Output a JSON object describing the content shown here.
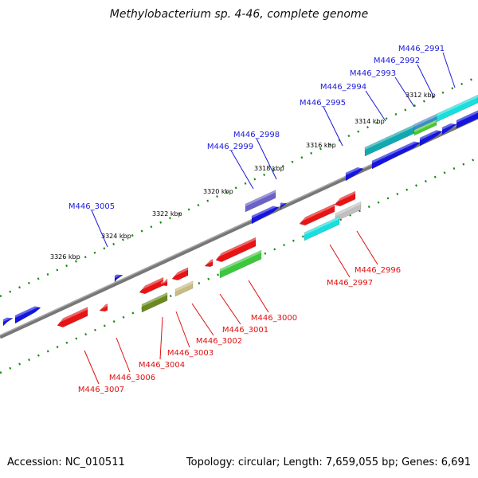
{
  "title": "Methylobacterium sp. 4-46, complete genome",
  "footer": {
    "accession": "Accession: NC_010511",
    "topology": "Topology: circular; Length: 7,659,055 bp; Genes: 6,691"
  },
  "scale": {
    "ticks": [
      {
        "label": "3312 kbp"
      },
      {
        "label": "3314 kbp"
      },
      {
        "label": "3316 kbp"
      },
      {
        "label": "3318 kbp"
      },
      {
        "label": "3320 kbp"
      },
      {
        "label": "3322 kbp"
      },
      {
        "label": "3324 kbp"
      },
      {
        "label": "3326 kbp"
      }
    ]
  },
  "genes": {
    "forward": [
      {
        "label": "M446_2991",
        "color": "#1a1adb"
      },
      {
        "label": "M446_2992",
        "color": "#1a1adb"
      },
      {
        "label": "M446_2993",
        "color": "#1a1adb"
      },
      {
        "label": "M446_2994",
        "color": "#1a1adb"
      },
      {
        "label": "M446_2995",
        "color": "#1a1adb"
      },
      {
        "label": "M446_2998",
        "color": "#1a1adb"
      },
      {
        "label": "M446_2999",
        "color": "#1a1adb"
      },
      {
        "label": "M446_3005",
        "color": "#1a1adb"
      }
    ],
    "reverse": [
      {
        "label": "M446_2996",
        "color": "#e01010"
      },
      {
        "label": "M446_2997",
        "color": "#e01010"
      },
      {
        "label": "M446_3000",
        "color": "#e01010"
      },
      {
        "label": "M446_3001",
        "color": "#e01010"
      },
      {
        "label": "M446_3002",
        "color": "#e01010"
      },
      {
        "label": "M446_3003",
        "color": "#e01010"
      },
      {
        "label": "M446_3004",
        "color": "#e01010"
      },
      {
        "label": "M446_3006",
        "color": "#e01010"
      },
      {
        "label": "M446_3007",
        "color": "#e01010"
      }
    ]
  },
  "colors": {
    "forward_label": "#1a1adb",
    "reverse_label": "#e01010",
    "backbone": "#7f7f7f",
    "tick_marks": "#138a13"
  }
}
